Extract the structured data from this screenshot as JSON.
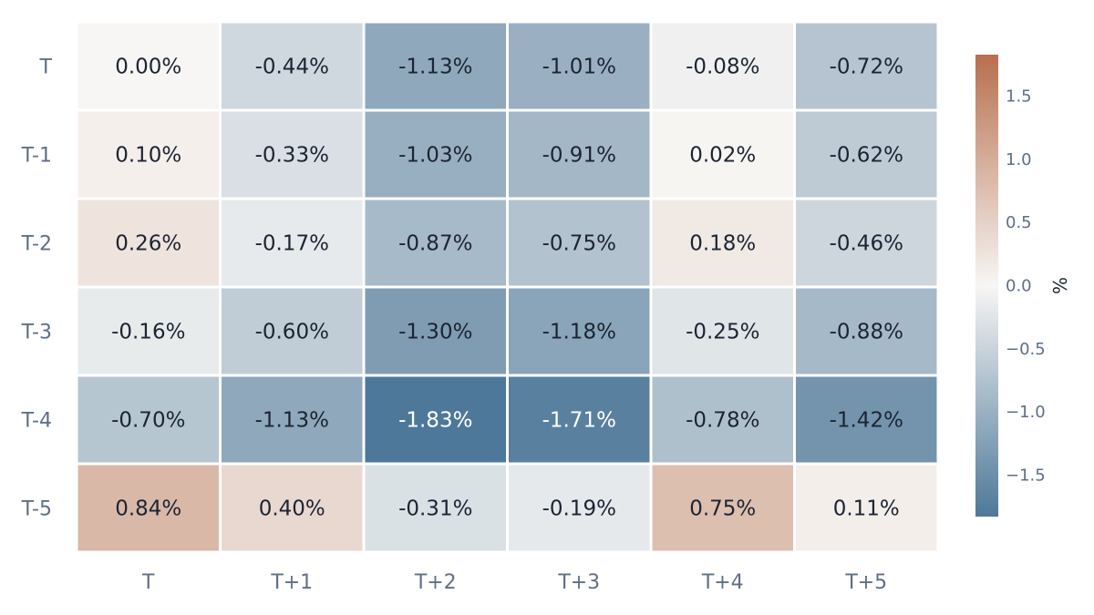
{
  "chart_data": {
    "type": "heatmap",
    "rows": [
      "T",
      "T-1",
      "T-2",
      "T-3",
      "T-4",
      "T-5"
    ],
    "columns": [
      "T",
      "T+1",
      "T+2",
      "T+3",
      "T+4",
      "T+5"
    ],
    "values": [
      [
        0.0,
        -0.44,
        -1.13,
        -1.01,
        -0.08,
        -0.72
      ],
      [
        0.1,
        -0.33,
        -1.03,
        -0.91,
        0.02,
        -0.62
      ],
      [
        0.26,
        -0.17,
        -0.87,
        -0.75,
        0.18,
        -0.46
      ],
      [
        -0.16,
        -0.6,
        -1.3,
        -1.18,
        -0.25,
        -0.88
      ],
      [
        -0.7,
        -1.13,
        -1.83,
        -1.71,
        -0.78,
        -1.42
      ],
      [
        0.84,
        0.4,
        -0.31,
        -0.19,
        0.75,
        0.11
      ]
    ],
    "cell_labels": [
      [
        "0.00%",
        "-0.44%",
        "-1.13%",
        "-1.01%",
        "-0.08%",
        "-0.72%"
      ],
      [
        "0.10%",
        "-0.33%",
        "-1.03%",
        "-0.91%",
        "0.02%",
        "-0.62%"
      ],
      [
        "0.26%",
        "-0.17%",
        "-0.87%",
        "-0.75%",
        "0.18%",
        "-0.46%"
      ],
      [
        "-0.16%",
        "-0.60%",
        "-1.30%",
        "-1.18%",
        "-0.25%",
        "-0.88%"
      ],
      [
        "-0.70%",
        "-1.13%",
        "-1.83%",
        "-1.71%",
        "-0.78%",
        "-1.42%"
      ],
      [
        "0.84%",
        "0.40%",
        "-0.31%",
        "-0.19%",
        "0.75%",
        "0.11%"
      ]
    ],
    "colorscale": {
      "min": -1.83,
      "max": 1.83,
      "mid": 0,
      "negative_color": "#4e7899",
      "neutral_color": "#f7f6f4",
      "positive_color": "#b86f4f"
    },
    "colorbar": {
      "title": "%",
      "ticks": [
        1.5,
        1.0,
        0.5,
        0.0,
        -0.5,
        -1.0,
        -1.5
      ],
      "tick_labels": [
        "1.5",
        "1.0",
        "0.5",
        "0.0",
        "−0.5",
        "−1.0",
        "−1.5"
      ]
    },
    "label_colors": {
      "dark": "#1c2433",
      "light": "#ffffff"
    },
    "grid": false
  }
}
